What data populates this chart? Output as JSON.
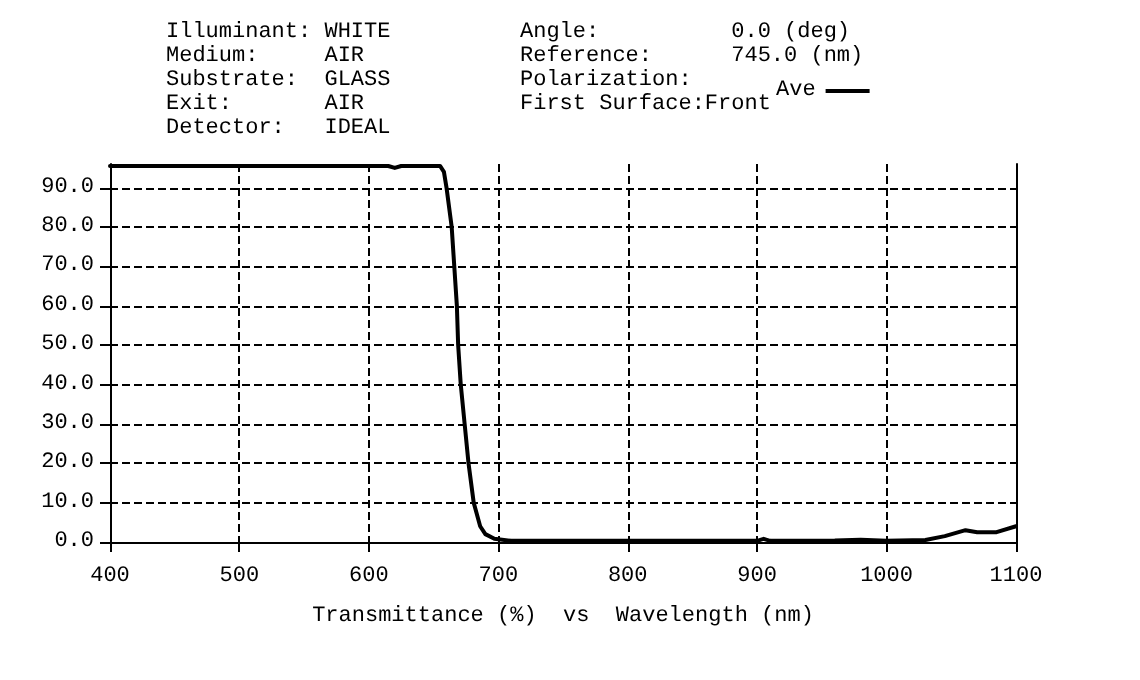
{
  "chart_data": {
    "type": "line",
    "xlabel": "Transmittance (%)  vs  Wavelength (nm)",
    "annotations": [
      "Illuminant: WHITE",
      "Medium:     AIR",
      "Substrate:  GLASS",
      "Exit:       AIR",
      "Detector:   IDEAL",
      "Angle:          0.0 (deg)",
      "Reference:      745.0 (nm)",
      "Polarization:",
      "First Surface:Front"
    ],
    "x": [
      400,
      500,
      600,
      615,
      620,
      625,
      650,
      655,
      658,
      660,
      664,
      666,
      668,
      669,
      671,
      674,
      677,
      681,
      686,
      690,
      697,
      710,
      800,
      900,
      905,
      910,
      960,
      980,
      1000,
      1030,
      1045,
      1061,
      1070,
      1085,
      1100
    ],
    "series": [
      {
        "name": "Ave",
        "color": "#000000",
        "values": [
          95.5,
          95.5,
          95.5,
          95.5,
          95,
          95.5,
          95.5,
          95.5,
          94,
          90,
          80,
          70,
          60,
          50,
          40,
          30,
          20,
          10,
          4,
          2,
          0.8,
          0.3,
          0.3,
          0.3,
          0.8,
          0.3,
          0.4,
          0.6,
          0.3,
          0.5,
          1.5,
          3,
          2.5,
          2.5,
          4
        ]
      }
    ],
    "xlim": [
      400,
      1100
    ],
    "xticks": [
      400,
      500,
      600,
      700,
      800,
      900,
      1000,
      1100
    ],
    "ylim": [
      0,
      96
    ],
    "yticks": [
      {
        "value": 0,
        "label": "0.0"
      },
      {
        "value": 10,
        "label": "10.0"
      },
      {
        "value": 20,
        "label": "20.0"
      },
      {
        "value": 30,
        "label": "30.0"
      },
      {
        "value": 40,
        "label": "40.0"
      },
      {
        "value": 50,
        "label": "50.0"
      },
      {
        "value": 60,
        "label": "60.0"
      },
      {
        "value": 70,
        "label": "70.0"
      },
      {
        "value": 80,
        "label": "80.0"
      },
      {
        "value": 90,
        "label": "90.0"
      }
    ],
    "grid": true,
    "legend": "top",
    "marker": "none",
    "line_style": "solid"
  }
}
